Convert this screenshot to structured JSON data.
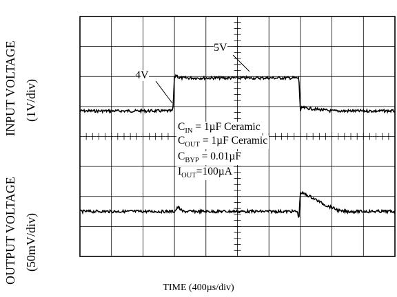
{
  "chart_data": {
    "type": "line",
    "xlabel": "TIME (400µs/div)",
    "ylabel_top": [
      "INPUT VOLTAGE",
      "(1V/div)"
    ],
    "ylabel_bottom": [
      "OUTPUT VOLTAGE",
      "(50mV/div)"
    ],
    "grid": true,
    "divisions": {
      "x": 10,
      "y": 8
    },
    "x_unit": "div",
    "series": [
      {
        "name": "",
        "x": [
          0,
          1.5,
          2.95,
          3.0,
          3.05,
          3.15,
          4.0,
          5.0,
          6.0,
          6.95,
          7.0,
          7.05,
          8.0,
          10.0
        ],
        "y": [
          4,
          4,
          4,
          5,
          5.1,
          5,
          5,
          5,
          5,
          5,
          4,
          4.1,
          4,
          4
        ]
      },
      {
        "name": "",
        "x": [
          0,
          2.0,
          3.0,
          3.12,
          3.25,
          6.9,
          6.95,
          7.0,
          7.3,
          7.8,
          8.3,
          10.0
        ],
        "y": [
          0,
          0,
          0,
          0.35,
          0,
          0,
          -0.6,
          1.5,
          1.2,
          0.5,
          0,
          0
        ]
      }
    ],
    "annotations": {
      "v4": "4V",
      "v5": "5V",
      "cin": {
        "main": "C",
        "sub": "IN",
        "rest": " = 1µF Ceramic"
      },
      "cout": {
        "main": "C",
        "sub": "OUT",
        "rest": " = 1µF Ceramic"
      },
      "cbyp": {
        "main": "C",
        "sub": "BYP",
        "rest": " = 0.01µF"
      },
      "iout": {
        "main": "I",
        "sub": "OUT",
        "rest": "=100µA"
      }
    }
  }
}
